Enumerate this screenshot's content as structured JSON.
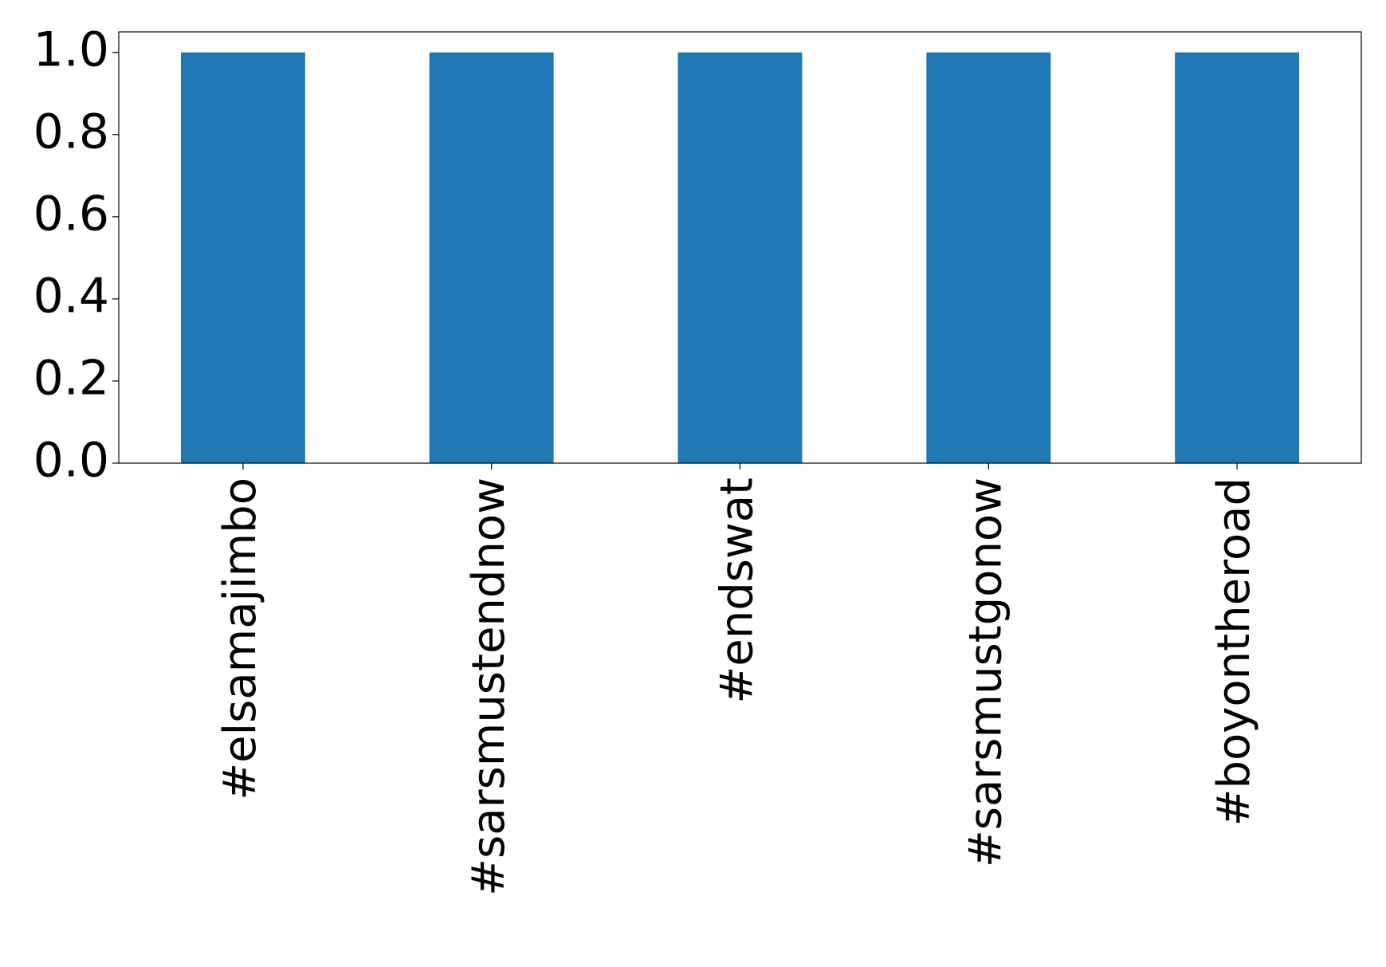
{
  "chart_data": {
    "type": "bar",
    "categories": [
      "#elsamajimbo",
      "#sarsmustendnow",
      "#endswat",
      "#sarsmustgonow",
      "#boyontheroad"
    ],
    "values": [
      1,
      1,
      1,
      1,
      1
    ],
    "color": "#1f77b4",
    "ylim": [
      0,
      1.05
    ],
    "yticks": [
      {
        "value": 0,
        "label": "0.0"
      },
      {
        "value": 0.2,
        "label": "0.2"
      },
      {
        "value": 0.4,
        "label": "0.4"
      },
      {
        "value": 0.6,
        "label": "0.6"
      },
      {
        "value": 0.8,
        "label": "0.8"
      },
      {
        "value": 1,
        "label": "1.0"
      }
    ],
    "grid": false
  }
}
